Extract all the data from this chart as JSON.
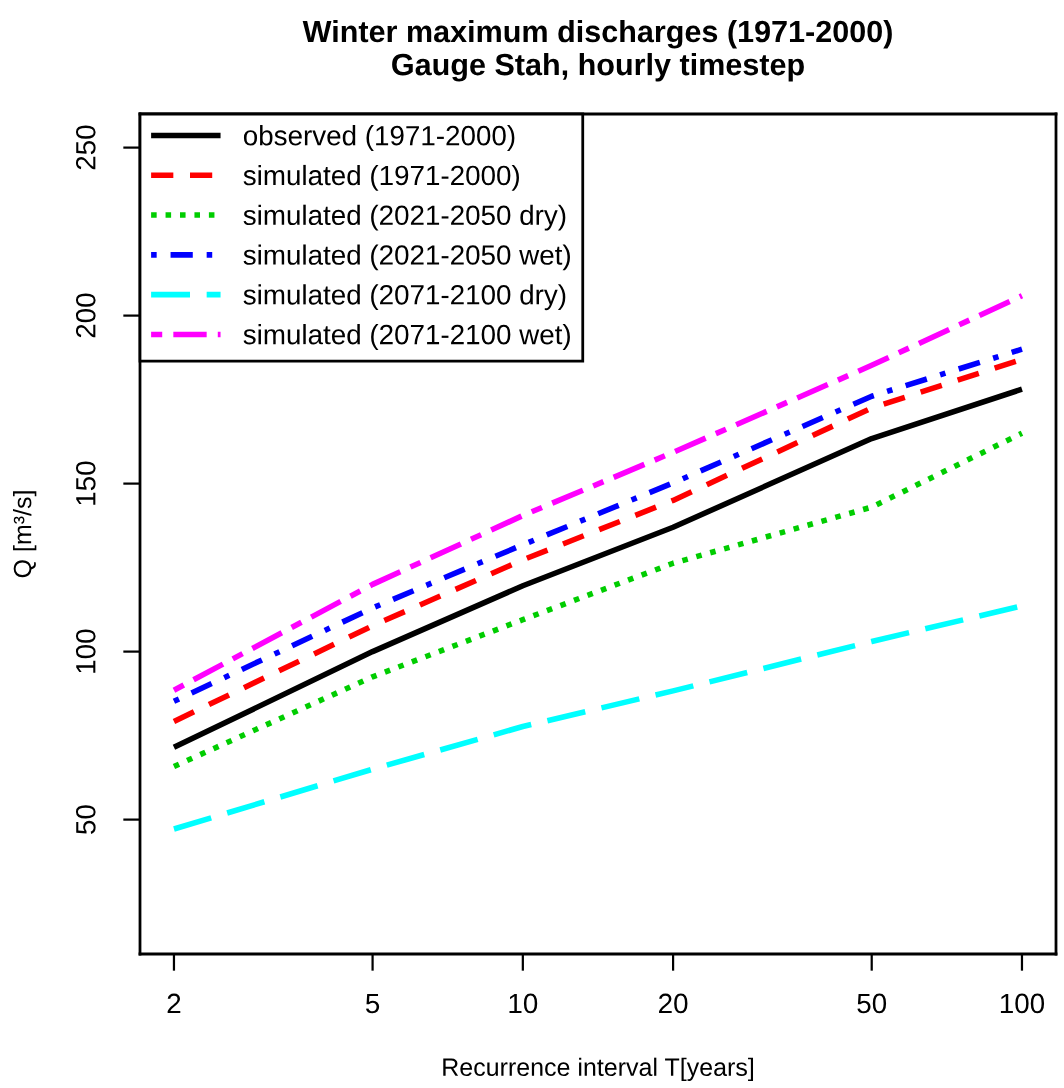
{
  "chart_data": {
    "type": "line",
    "title": "Winter maximum discharges (1971-2000)\nGauge Stah, hourly timestep",
    "xlabel": "Recurrence interval T[years]",
    "ylabel": "Q [m³/s]",
    "x": [
      2,
      5,
      10,
      20,
      50,
      100
    ],
    "log": "x",
    "xlim": [
      1.71,
      117
    ],
    "xticks": [
      2,
      5,
      10,
      20,
      50,
      100
    ],
    "ylim": [
      10,
      260
    ],
    "yticks": [
      50,
      100,
      150,
      200,
      250
    ],
    "grid": false,
    "legend": "top left",
    "marker": "none",
    "series": [
      {
        "name": "observed (1971-2000)",
        "color": "#000000",
        "line_style": "solid",
        "values": [
          71.5,
          100,
          119.6,
          137,
          163.4,
          178.1
        ]
      },
      {
        "name": "simulated (1971-2000)",
        "color": "#ff0000",
        "line_style": "dashed",
        "values": [
          79.2,
          107.7,
          127.3,
          145,
          172.5,
          187
        ]
      },
      {
        "name": "simulated (2021-2050 dry)",
        "color": "#00cd00",
        "line_style": "dotted",
        "values": [
          65.8,
          92.5,
          109.5,
          126.3,
          143,
          165
        ]
      },
      {
        "name": "simulated (2021-2050 wet)",
        "color": "#0000ff",
        "line_style": "dashdot",
        "values": [
          85.2,
          113,
          131.8,
          150.2,
          176,
          190
        ]
      },
      {
        "name": "simulated (2071-2100 dry)",
        "color": "#00ffff",
        "line_style": "longdash",
        "values": [
          47.2,
          65,
          77.7,
          88.3,
          103,
          113.6
        ]
      },
      {
        "name": "simulated (2071-2100 wet)",
        "color": "#ff00ff",
        "line_style": "twodash",
        "values": [
          88.5,
          120,
          140.5,
          159.3,
          185.2,
          205.9
        ]
      }
    ]
  }
}
